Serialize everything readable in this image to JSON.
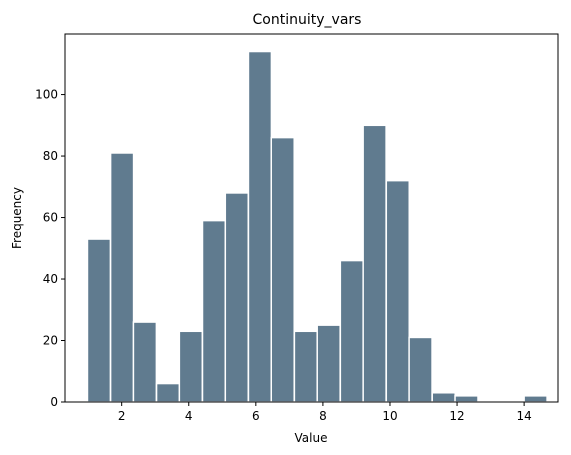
{
  "chart_data": {
    "type": "bar",
    "title": "Continuity_vars",
    "xlabel": "Value",
    "ylabel": "Frequency",
    "xlim": [
      0.31,
      15.01
    ],
    "ylim": [
      0,
      119.7
    ],
    "grid": false,
    "bar_color": "#607b8f",
    "bin_width": 0.6846,
    "bins": [
      {
        "left": 0.98,
        "count": 53
      },
      {
        "left": 1.67,
        "count": 81
      },
      {
        "left": 2.35,
        "count": 26
      },
      {
        "left": 3.04,
        "count": 6
      },
      {
        "left": 3.72,
        "count": 23
      },
      {
        "left": 4.41,
        "count": 59
      },
      {
        "left": 5.09,
        "count": 68
      },
      {
        "left": 5.78,
        "count": 114
      },
      {
        "left": 6.46,
        "count": 86
      },
      {
        "left": 7.15,
        "count": 23
      },
      {
        "left": 7.83,
        "count": 25
      },
      {
        "left": 8.52,
        "count": 46
      },
      {
        "left": 9.2,
        "count": 90
      },
      {
        "left": 9.89,
        "count": 72
      },
      {
        "left": 10.57,
        "count": 21
      },
      {
        "left": 11.26,
        "count": 3
      },
      {
        "left": 11.94,
        "count": 2
      },
      {
        "left": 12.63,
        "count": 0
      },
      {
        "left": 13.31,
        "count": 0
      },
      {
        "left": 14.0,
        "count": 2
      }
    ],
    "x_ticks": [
      2,
      4,
      6,
      8,
      10,
      12,
      14
    ],
    "y_ticks": [
      0,
      20,
      40,
      60,
      80,
      100
    ]
  }
}
